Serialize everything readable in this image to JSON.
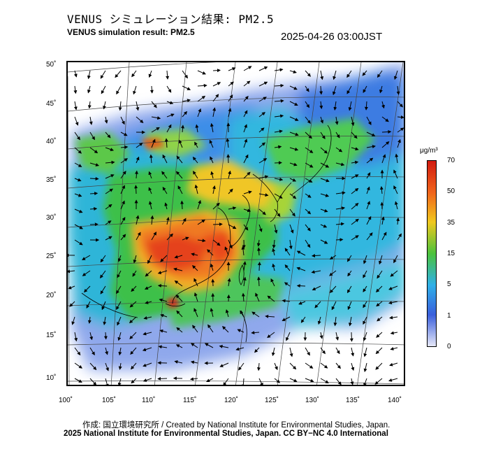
{
  "header": {
    "title_ja": "VENUS シミュレーション結果: PM2.5",
    "title_en": "VENUS simulation result: PM2.5",
    "datetime": "2025-04-26 03:00JST"
  },
  "map": {
    "lat_labels": [
      "50˚",
      "45˚",
      "40˚",
      "35˚",
      "30˚",
      "25˚",
      "20˚",
      "15˚",
      "10˚"
    ],
    "lon_labels": [
      "100˚",
      "105˚",
      "110˚",
      "115˚",
      "120˚",
      "125˚",
      "130˚",
      "135˚",
      "140˚"
    ]
  },
  "colorbar": {
    "unit": "μg/m³",
    "levels": [
      "70",
      "50",
      "35",
      "15",
      "5",
      "1",
      "0"
    ],
    "colors": [
      "#d11a10",
      "#f0641c",
      "#f0c81e",
      "#4bc23c",
      "#2fb0e8",
      "#3a5fdc",
      "#e6e8f8"
    ]
  },
  "footer": {
    "credit_ja_en": "作成: 国立環境研究所 / Created by National Institute for Environmental Studies, Japan.",
    "copyright": "2025 National Institute for Environmental Studies, Japan. CC BY−NC 4.0 International"
  }
}
